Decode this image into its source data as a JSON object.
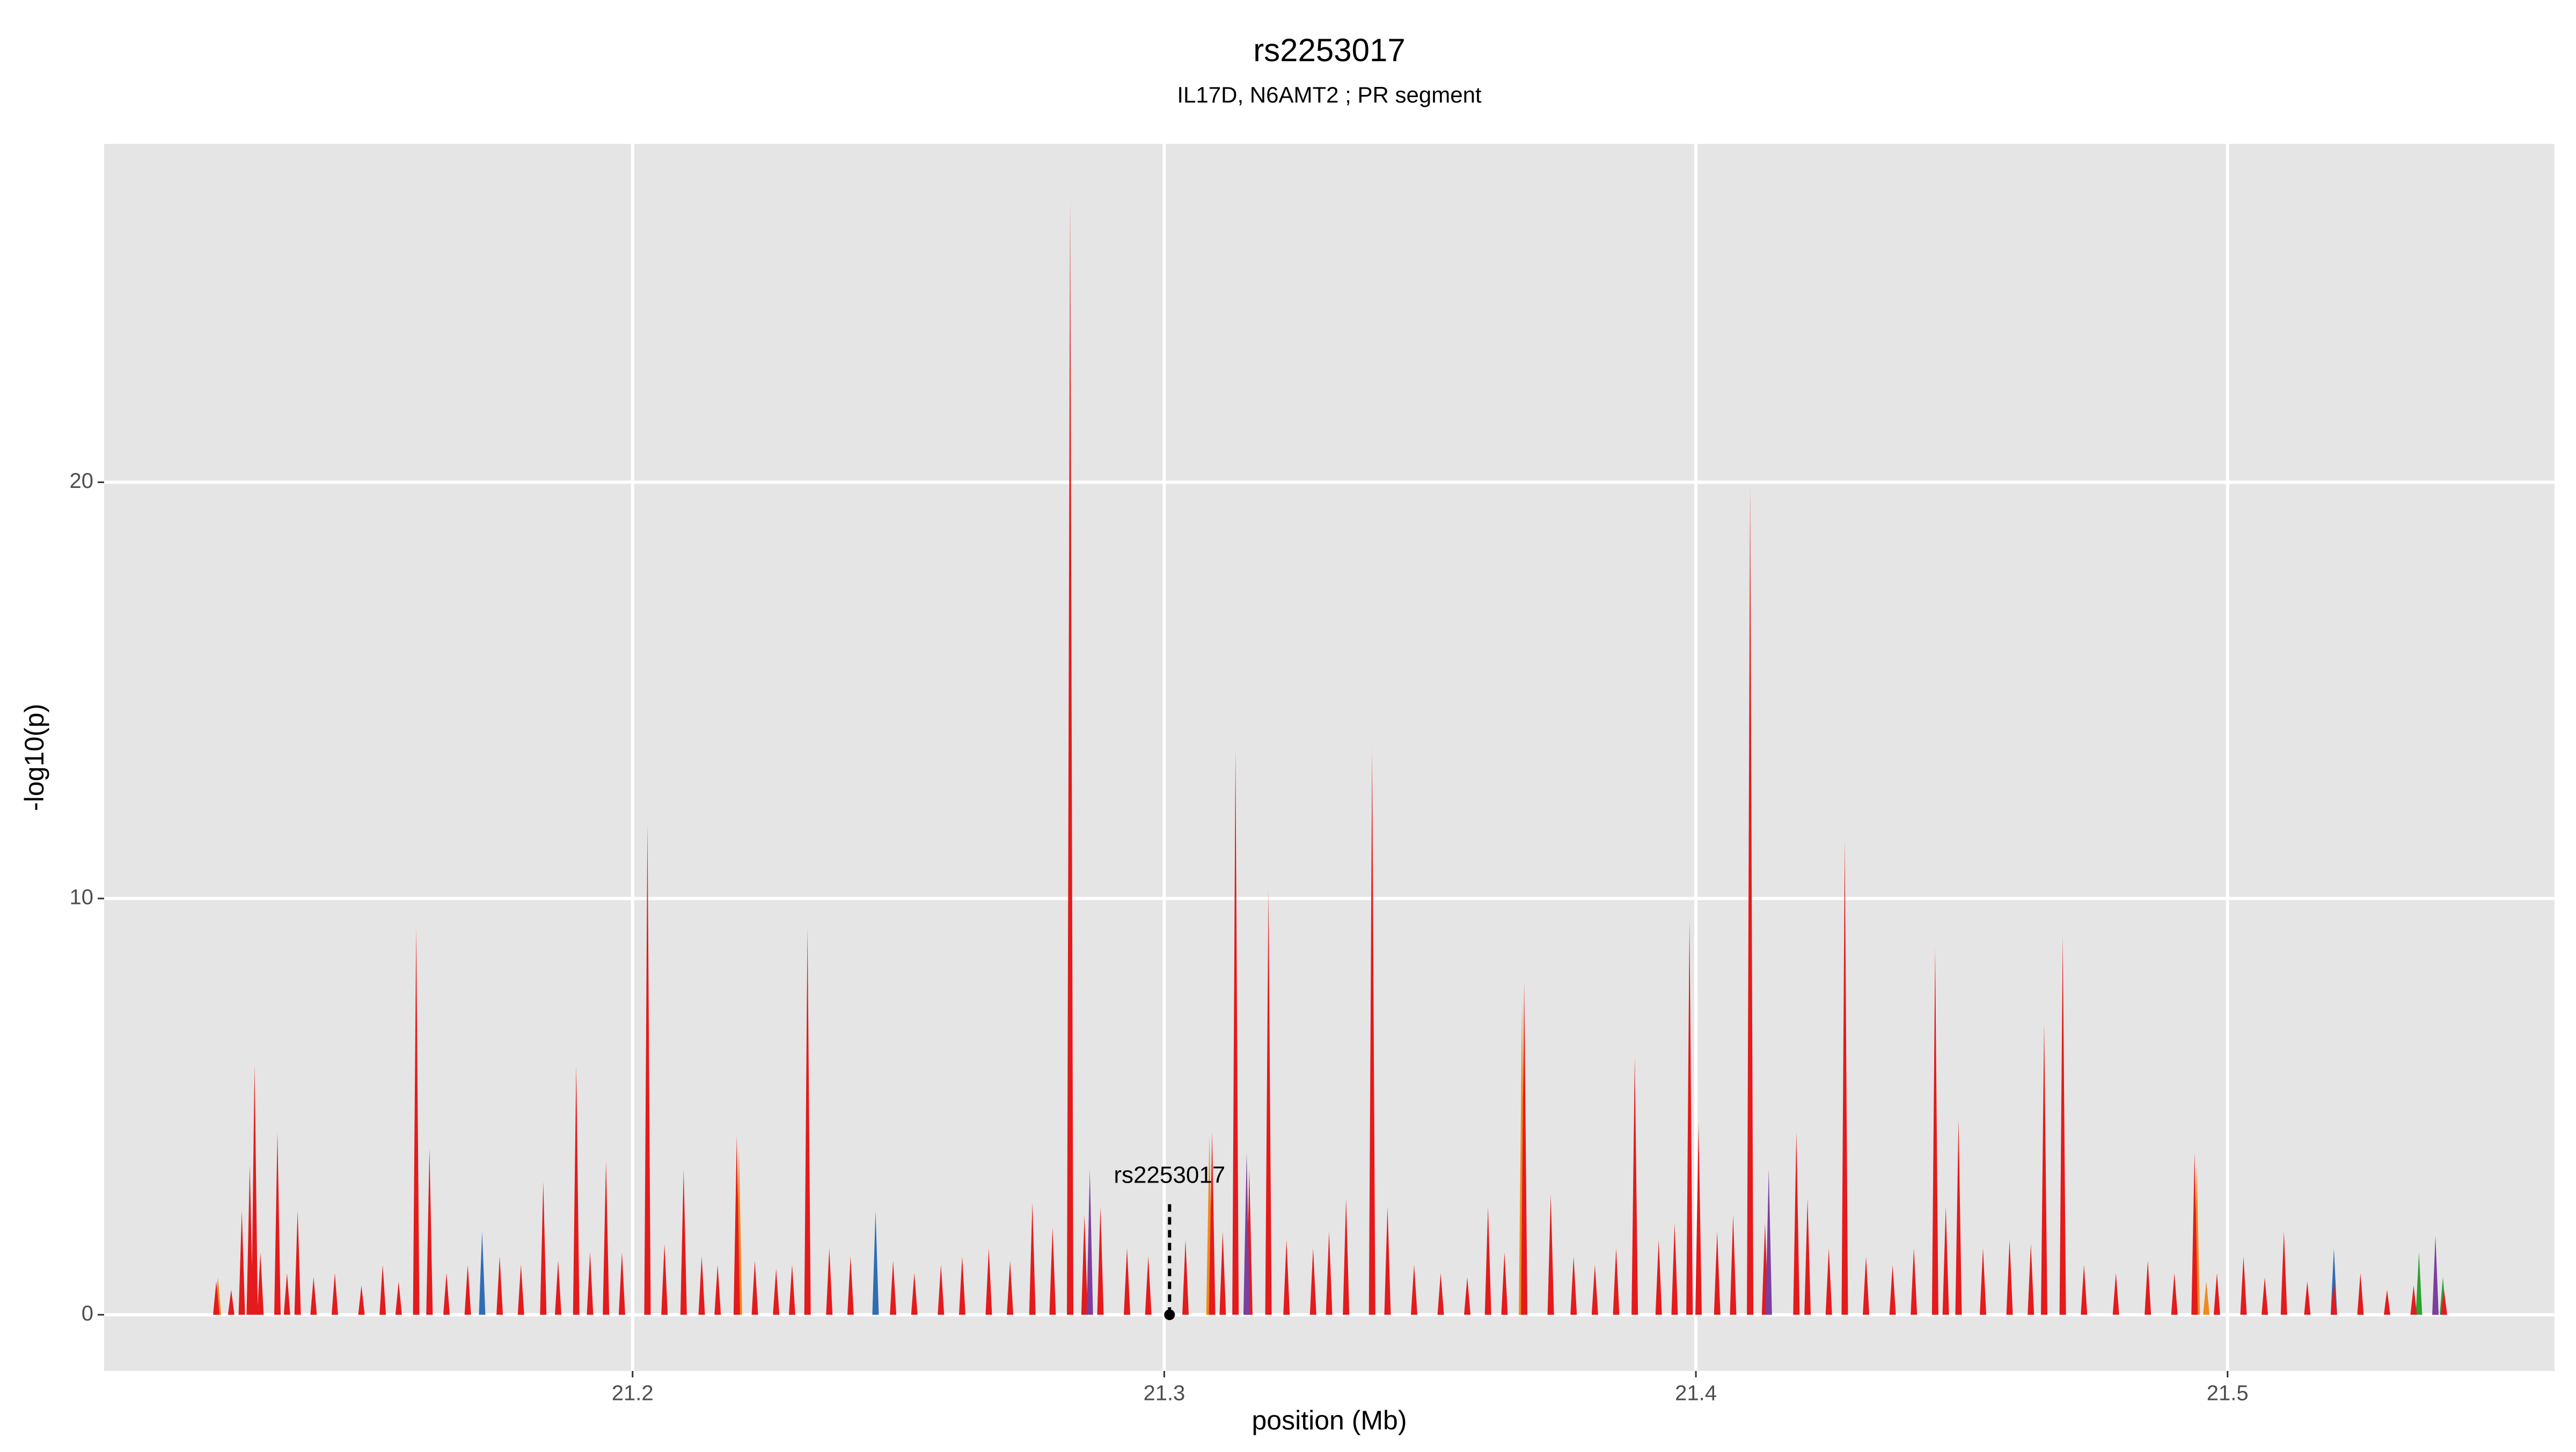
{
  "chart_data": {
    "type": "spike",
    "title": "rs2253017",
    "subtitle": "IL17D, N6AMT2 ; PR segment",
    "x_label": "position (Mb)",
    "y_label": "-log10(p)",
    "xlim": [
      21.1006,
      21.5615
    ],
    "ylim": [
      -1.35,
      28.13
    ],
    "xticks": [
      21.2,
      21.3,
      21.4,
      21.5
    ],
    "yticks": [
      0,
      10,
      20
    ],
    "grid": true,
    "annotation": {
      "text": "rs2253017",
      "x": 21.301,
      "y": 0,
      "ymax": 2.7
    },
    "series": [
      {
        "color": "#2f6db5",
        "x": [
          21.1717,
          21.2457,
          21.52
        ],
        "values": [
          2.0,
          2.5,
          1.6
        ]
      },
      {
        "color": "#f08a1c",
        "x": [
          21.122,
          21.22,
          21.3085,
          21.3673,
          21.4942,
          21.496
        ],
        "values": [
          0.9,
          4.0,
          4.3,
          7.5,
          3.6,
          0.8
        ]
      },
      {
        "color": "#2fa02f",
        "x": [
          21.536,
          21.5405
        ],
        "values": [
          1.5,
          0.9
        ]
      },
      {
        "color": "#e41a1c",
        "x": [
          21.1217,
          21.1245,
          21.1265,
          21.128,
          21.1289,
          21.13,
          21.1332,
          21.135,
          21.137,
          21.14,
          21.144,
          21.149,
          21.153,
          21.156,
          21.1593,
          21.1618,
          21.165,
          21.169,
          21.175,
          21.179,
          21.1832,
          21.186,
          21.1894,
          21.192,
          21.195,
          21.198,
          21.2028,
          21.206,
          21.2096,
          21.213,
          21.216,
          21.2196,
          21.223,
          21.227,
          21.23,
          21.2329,
          21.237,
          21.241,
          21.249,
          21.253,
          21.258,
          21.262,
          21.267,
          21.271,
          21.2752,
          21.279,
          21.2823,
          21.285,
          21.288,
          21.293,
          21.297,
          21.304,
          21.309,
          21.311,
          21.3134,
          21.316,
          21.3196,
          21.323,
          21.328,
          21.331,
          21.3342,
          21.3391,
          21.342,
          21.347,
          21.352,
          21.357,
          21.3609,
          21.364,
          21.3677,
          21.3727,
          21.377,
          21.381,
          21.385,
          21.3885,
          21.393,
          21.396,
          21.3988,
          21.4005,
          21.404,
          21.407,
          21.4102,
          21.413,
          21.4189,
          21.421,
          21.425,
          21.428,
          21.432,
          21.437,
          21.441,
          21.445,
          21.447,
          21.4494,
          21.454,
          21.459,
          21.463,
          21.4655,
          21.469,
          21.473,
          21.479,
          21.485,
          21.49,
          21.4938,
          21.498,
          21.503,
          21.507,
          21.5106,
          21.515,
          21.52,
          21.525,
          21.53,
          21.535,
          21.5391,
          21.5407
        ],
        "values": [
          0.8,
          0.6,
          2.5,
          3.6,
          6.0,
          1.5,
          4.4,
          1.0,
          2.5,
          0.9,
          1.0,
          0.7,
          1.2,
          0.8,
          9.3,
          4.0,
          1.0,
          1.2,
          1.4,
          1.2,
          3.2,
          1.3,
          6.0,
          1.5,
          3.7,
          1.5,
          11.8,
          1.7,
          3.5,
          1.4,
          1.2,
          4.3,
          1.3,
          1.1,
          1.2,
          9.3,
          1.6,
          1.4,
          1.3,
          1.0,
          1.2,
          1.4,
          1.6,
          1.3,
          2.7,
          2.1,
          26.8,
          2.4,
          2.6,
          1.6,
          1.4,
          1.8,
          4.4,
          2.0,
          13.6,
          3.5,
          10.2,
          1.8,
          1.6,
          2.0,
          2.8,
          13.6,
          2.6,
          1.2,
          1.0,
          0.9,
          2.6,
          1.5,
          8.0,
          2.9,
          1.4,
          1.2,
          1.6,
          6.2,
          1.8,
          2.2,
          9.5,
          4.6,
          2.0,
          2.4,
          19.9,
          2.2,
          4.4,
          2.8,
          1.6,
          11.4,
          1.4,
          1.2,
          1.6,
          8.8,
          2.6,
          4.7,
          1.6,
          1.8,
          1.7,
          7.0,
          9.1,
          1.2,
          1.0,
          1.3,
          1.0,
          3.9,
          1.0,
          1.4,
          0.9,
          2.0,
          0.8,
          0.8,
          1.0,
          0.6,
          0.7,
          0.8,
          0.6
        ]
      },
      {
        "color": "#7b3f9e",
        "x": [
          21.286,
          21.3155,
          21.4137,
          21.5391
        ],
        "values": [
          3.5,
          3.9,
          3.5,
          1.9
        ]
      }
    ]
  }
}
